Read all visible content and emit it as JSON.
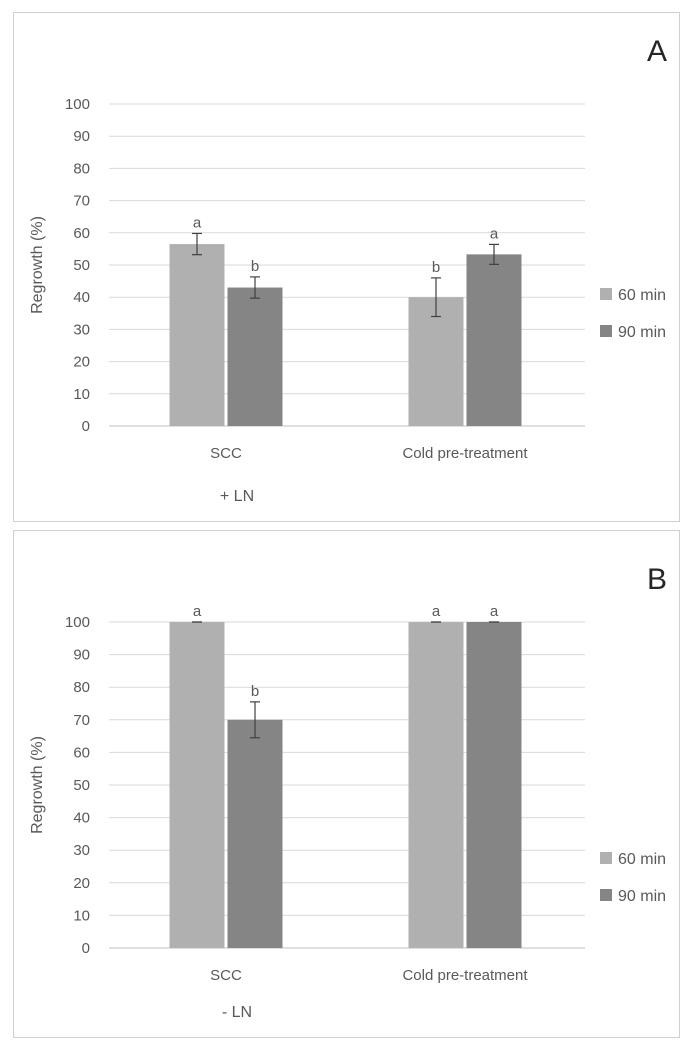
{
  "chart_data": [
    {
      "type": "bar",
      "panel_label": "A",
      "title": "",
      "xlabel": "+ LN",
      "ylabel": "Regrowth (%)",
      "ylim": [
        0,
        100
      ],
      "yticks": [
        0,
        10,
        20,
        30,
        40,
        50,
        60,
        70,
        80,
        90,
        100
      ],
      "grid": true,
      "legend_position": "right",
      "categories": [
        "SCC",
        "Cold pre-treatment"
      ],
      "series": [
        {
          "name": "60 min",
          "color": "#b0b0b0",
          "values": [
            56.5,
            40
          ],
          "errors": [
            3.3,
            6
          ],
          "labels": [
            "a",
            "b"
          ]
        },
        {
          "name": "90 min",
          "color": "#858585",
          "values": [
            43,
            53.3
          ],
          "errors": [
            3.3,
            3.1
          ],
          "labels": [
            "b",
            "a"
          ]
        }
      ]
    },
    {
      "type": "bar",
      "panel_label": "B",
      "title": "",
      "xlabel": "- LN",
      "ylabel": "Regrowth (%)",
      "ylim": [
        0,
        100
      ],
      "yticks": [
        0,
        10,
        20,
        30,
        40,
        50,
        60,
        70,
        80,
        90,
        100
      ],
      "grid": true,
      "legend_position": "right",
      "categories": [
        "SCC",
        "Cold pre-treatment"
      ],
      "series": [
        {
          "name": "60 min",
          "color": "#b0b0b0",
          "values": [
            100,
            100
          ],
          "errors": [
            0,
            0
          ],
          "labels": [
            "a",
            "a"
          ]
        },
        {
          "name": "90 min",
          "color": "#858585",
          "values": [
            70,
            100
          ],
          "errors": [
            5.5,
            0
          ],
          "labels": [
            "b",
            "a"
          ]
        }
      ]
    }
  ]
}
